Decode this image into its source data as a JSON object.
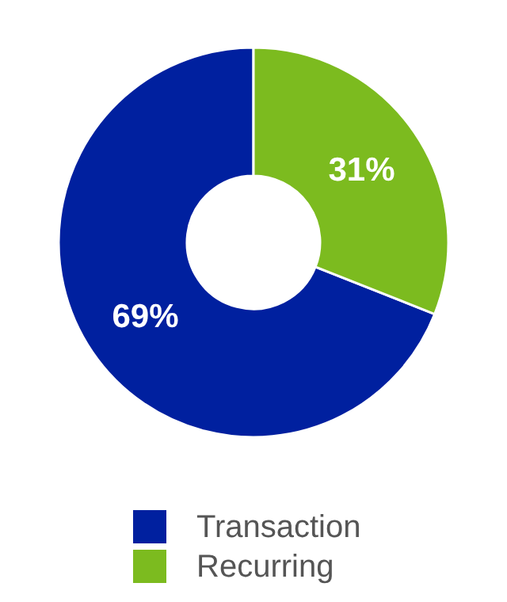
{
  "chart_data": {
    "type": "donut",
    "categories": [
      "Transaction",
      "Recurring"
    ],
    "values": [
      69,
      31
    ],
    "colors": [
      "#00209f",
      "#7cbb1f"
    ],
    "value_labels": [
      "69%",
      "31%"
    ],
    "legend": "bottom"
  }
}
